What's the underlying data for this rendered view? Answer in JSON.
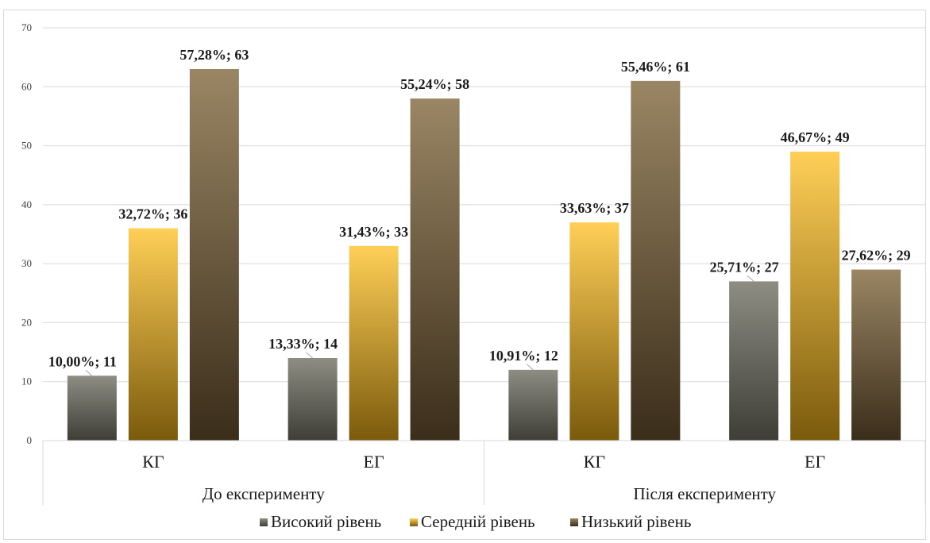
{
  "chart_data": {
    "type": "bar",
    "title": "",
    "xlabel": "",
    "ylabel": "",
    "ylim": [
      0,
      70
    ],
    "yticks": [
      0,
      10,
      20,
      30,
      40,
      50,
      60,
      70
    ],
    "grid": true,
    "legend_position": "bottom",
    "groups": [
      {
        "label": "До експерименту",
        "categories": [
          "КГ",
          "ЕГ"
        ]
      },
      {
        "label": "Після експерименту",
        "categories": [
          "КГ",
          "ЕГ"
        ]
      }
    ],
    "categories": [
      "КГ",
      "ЕГ",
      "КГ",
      "ЕГ"
    ],
    "series": [
      {
        "name": "Високий рівень",
        "color": "#6b6b60",
        "values": [
          11,
          14,
          12,
          27
        ],
        "labels": [
          "10,00%; 11",
          "13,33%; 14",
          "10,91%; 12",
          "25,71%; 27"
        ]
      },
      {
        "name": "Середній рівень",
        "color": "#d9a520",
        "values": [
          36,
          33,
          37,
          49
        ],
        "labels": [
          "32,72%; 36",
          "31,43%; 33",
          "33,63%; 37",
          "46,67%; 49"
        ]
      },
      {
        "name": "Низький рівень",
        "color": "#6e5a3c",
        "values": [
          63,
          58,
          61,
          29
        ],
        "labels": [
          "57,28%; 63",
          "55,24%; 58",
          "55,46%; 61",
          "27,62%; 29"
        ]
      }
    ]
  }
}
